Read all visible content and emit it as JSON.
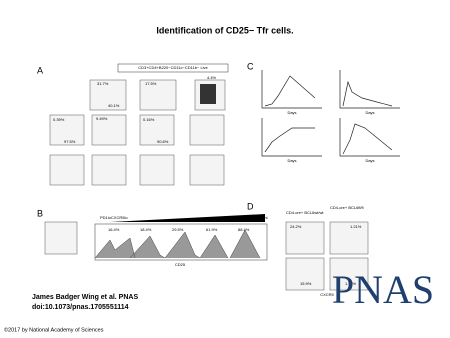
{
  "title": "Identification of CD25− Tfr cells.",
  "figure": {
    "panels": [
      "A",
      "B",
      "C",
      "D"
    ],
    "gate_label": "CD3+CD4+B220−CD11c−CD11b− Live",
    "panel_a_percentages": [
      "31.7%",
      "17.5%",
      "4.4%",
      "40.1%",
      "9.49%",
      "0.39%",
      "97.5%",
      "0.16%",
      "90.6%"
    ],
    "panel_b_header": [
      "PD1loCXCR5lo",
      "PD1hiCXCR5hi"
    ],
    "panel_b_percentages": [
      "16.4%",
      "18.4%",
      "29.5%",
      "61.9%",
      "88.4%"
    ],
    "panel_b_axis": "CD25",
    "panel_c_axis": [
      "Days",
      "Days",
      "Days",
      "Days"
    ],
    "panel_d_headers": [
      "CD4-cre+ BCL6wt/wt",
      "CD4-cre+ BCL6fl/fl"
    ],
    "panel_d_percentages": [
      "24.2%",
      "1.21%",
      "15.9%",
      "1.11%"
    ],
    "panel_d_axis": "CXCR5"
  },
  "citation": {
    "authors": "James Badger Wing et al. PNAS",
    "doi": "doi:10.1073/pnas.1705551114"
  },
  "logo": "PNAS",
  "copyright": "©2017 by National Academy of Sciences"
}
